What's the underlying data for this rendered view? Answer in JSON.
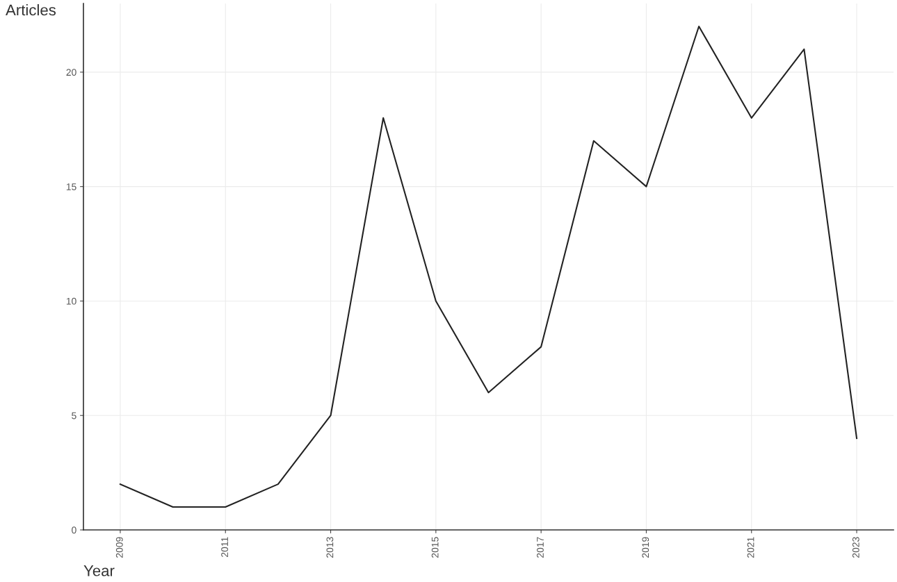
{
  "chart_data": {
    "type": "line",
    "xlabel": "Year",
    "ylabel": "Articles",
    "x": [
      2009,
      2010,
      2011,
      2012,
      2013,
      2014,
      2015,
      2016,
      2017,
      2018,
      2019,
      2020,
      2021,
      2022,
      2023
    ],
    "series": [
      {
        "color": "#222222",
        "values": [
          2,
          1,
          1,
          2,
          5,
          18,
          10,
          6,
          8,
          17,
          15,
          22,
          18,
          21,
          4
        ]
      }
    ],
    "xlim": [
      2008.3,
      2023.7
    ],
    "xticks": [
      2009,
      2011,
      2013,
      2015,
      2017,
      2019,
      2021,
      2023
    ],
    "ylim": [
      0,
      23
    ],
    "yticks": [
      0,
      5,
      10,
      15,
      20
    ],
    "grid": true,
    "legend": false,
    "marker": "none",
    "line_style": "solid"
  }
}
